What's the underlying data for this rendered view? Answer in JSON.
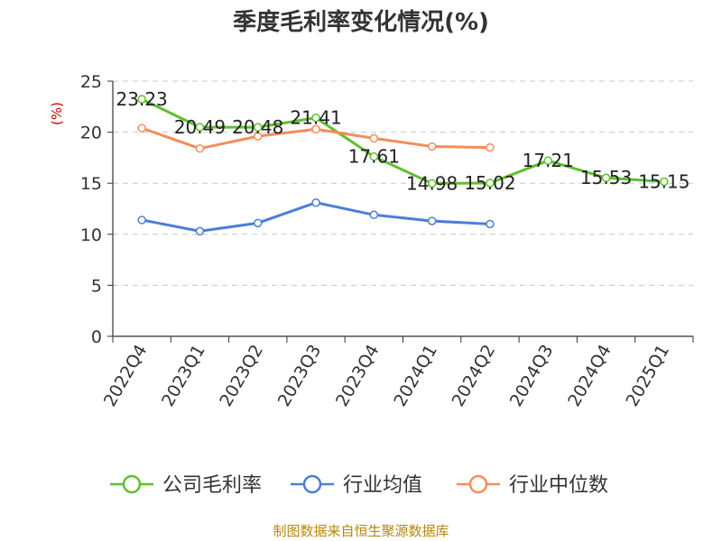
{
  "chart_data": {
    "type": "line",
    "title": "季度毛利率变化情况(%)",
    "ylabel": "(%)",
    "ylim": [
      0,
      25
    ],
    "yticks": [
      0,
      5,
      10,
      15,
      20,
      25
    ],
    "grid": true,
    "legend_position": "bottom",
    "categories": [
      "2022Q4",
      "2023Q1",
      "2023Q2",
      "2023Q3",
      "2023Q4",
      "2024Q1",
      "2024Q2",
      "2024Q3",
      "2024Q4",
      "2025Q1"
    ],
    "series": [
      {
        "name": "公司毛利率",
        "color": "#5fbf2e",
        "values": [
          23.23,
          20.49,
          20.48,
          21.41,
          17.61,
          14.98,
          15.02,
          17.21,
          15.53,
          15.15
        ],
        "labels": [
          "23.23",
          "20.49",
          "20.48",
          "21.41",
          "17.61",
          "14.98",
          "15.02",
          "17.21",
          "15.53",
          "15.15"
        ]
      },
      {
        "name": "行业均值",
        "color": "#4a7fd6",
        "values": [
          11.4,
          10.3,
          11.1,
          13.1,
          11.9,
          11.3,
          11.0,
          null,
          null,
          null
        ]
      },
      {
        "name": "行业中位数",
        "color": "#f58c5a",
        "values": [
          20.4,
          18.4,
          19.6,
          20.3,
          19.4,
          18.6,
          18.5,
          null,
          null,
          null
        ]
      }
    ],
    "source": "制图数据来自恒生聚源数据库"
  }
}
